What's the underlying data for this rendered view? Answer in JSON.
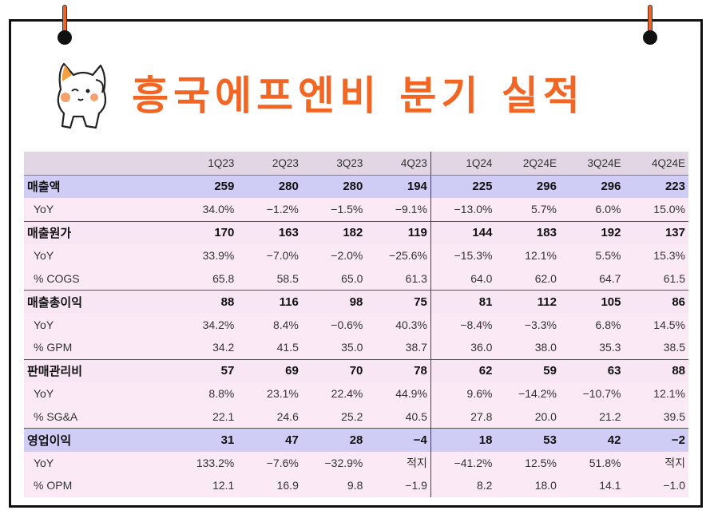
{
  "title": "흥국에프엔비 분기 실적",
  "colors": {
    "title": "#f26522",
    "header_bg": "#e2d6e4",
    "highlight_bg": "#cfcdf5",
    "row_bg": "#fbeaf6"
  },
  "table": {
    "columns": [
      "1Q23",
      "2Q23",
      "3Q23",
      "4Q23",
      "1Q24",
      "2Q24E",
      "3Q24E",
      "4Q24E"
    ],
    "rows": [
      {
        "label": "매출액",
        "type": "main",
        "highlight": true,
        "values": [
          "259",
          "280",
          "280",
          "194",
          "225",
          "296",
          "296",
          "223"
        ]
      },
      {
        "label": "YoY",
        "type": "sub",
        "values": [
          "34.0%",
          "−1.2%",
          "−1.5%",
          "−9.1%",
          "−13.0%",
          "5.7%",
          "6.0%",
          "15.0%"
        ]
      },
      {
        "label": "매출원가",
        "type": "main",
        "highlight": false,
        "values": [
          "170",
          "163",
          "182",
          "119",
          "144",
          "183",
          "192",
          "137"
        ]
      },
      {
        "label": "YoY",
        "type": "sub",
        "values": [
          "33.9%",
          "−7.0%",
          "−2.0%",
          "−25.6%",
          "−15.3%",
          "12.1%",
          "5.5%",
          "15.3%"
        ]
      },
      {
        "label": "% COGS",
        "type": "sub",
        "values": [
          "65.8",
          "58.5",
          "65.0",
          "61.3",
          "64.0",
          "62.0",
          "64.7",
          "61.5"
        ]
      },
      {
        "label": "매출총이익",
        "type": "main",
        "highlight": false,
        "values": [
          "88",
          "116",
          "98",
          "75",
          "81",
          "112",
          "105",
          "86"
        ]
      },
      {
        "label": "YoY",
        "type": "sub",
        "values": [
          "34.2%",
          "8.4%",
          "−0.6%",
          "40.3%",
          "−8.4%",
          "−3.3%",
          "6.8%",
          "14.5%"
        ]
      },
      {
        "label": "% GPM",
        "type": "sub",
        "values": [
          "34.2",
          "41.5",
          "35.0",
          "38.7",
          "36.0",
          "38.0",
          "35.3",
          "38.5"
        ]
      },
      {
        "label": "판매관리비",
        "type": "main",
        "highlight": false,
        "values": [
          "57",
          "69",
          "70",
          "78",
          "62",
          "59",
          "63",
          "88"
        ]
      },
      {
        "label": "YoY",
        "type": "sub",
        "values": [
          "8.8%",
          "23.1%",
          "22.4%",
          "44.9%",
          "9.6%",
          "−14.2%",
          "−10.7%",
          "12.1%"
        ]
      },
      {
        "label": "% SG&A",
        "type": "sub",
        "values": [
          "22.1",
          "24.6",
          "25.2",
          "40.5",
          "27.8",
          "20.0",
          "21.2",
          "39.5"
        ]
      },
      {
        "label": "영업이익",
        "type": "main",
        "highlight": true,
        "values": [
          "31",
          "47",
          "28",
          "−4",
          "18",
          "53",
          "42",
          "−2"
        ]
      },
      {
        "label": "YoY",
        "type": "sub",
        "values": [
          "133.2%",
          "−7.6%",
          "−32.9%",
          "적지",
          "−41.2%",
          "12.5%",
          "51.8%",
          "적지"
        ]
      },
      {
        "label": "% OPM",
        "type": "sub",
        "values": [
          "12.1",
          "16.9",
          "9.8",
          "−1.9",
          "8.2",
          "18.0",
          "14.1",
          "−1.0"
        ]
      }
    ]
  }
}
